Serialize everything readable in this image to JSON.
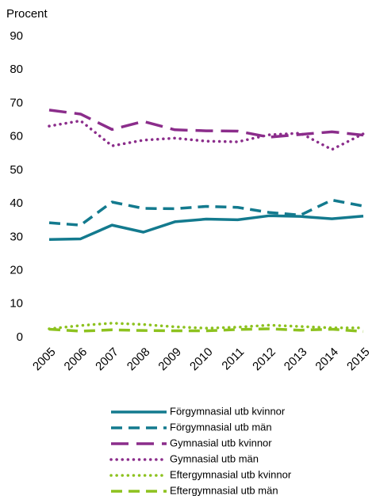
{
  "chart_data": {
    "type": "line",
    "y_label": "Procent",
    "categories": [
      "2005",
      "2006",
      "2007",
      "2008",
      "2009",
      "2010",
      "2011",
      "2012",
      "2013",
      "2014",
      "2015"
    ],
    "ylim": [
      0,
      90
    ],
    "yticks": [
      0,
      10,
      20,
      30,
      40,
      50,
      60,
      70,
      80,
      90
    ],
    "grid": false,
    "legend": "bottom",
    "series": [
      {
        "name": "Förgymnasial utb kvinnor",
        "color": "#137a8e",
        "style": "solid",
        "values": [
          29.3,
          29.5,
          33.6,
          31.5,
          34.6,
          35.4,
          35.2,
          36.4,
          36.2,
          35.5,
          36.3
        ]
      },
      {
        "name": "Förgymnasial utb män",
        "color": "#137a8e",
        "style": "dashed",
        "values": [
          34.3,
          33.6,
          40.5,
          38.6,
          38.5,
          39.2,
          38.9,
          37.4,
          36.6,
          41.1,
          39.3
        ]
      },
      {
        "name": "Gymnasial utb kvinnor",
        "color": "#8b2d8b",
        "style": "longdash",
        "values": [
          68.0,
          66.8,
          62.2,
          64.6,
          62.1,
          61.8,
          61.7,
          59.9,
          60.7,
          61.5,
          60.5
        ]
      },
      {
        "name": "Gymnasial utb män",
        "color": "#8b2d8b",
        "style": "dotted",
        "values": [
          63.2,
          64.8,
          57.3,
          59.0,
          59.6,
          58.7,
          58.5,
          60.6,
          61.1,
          56.2,
          60.9
        ]
      },
      {
        "name": "Eftergymnasial utb kvinnor",
        "color": "#8dc21f",
        "style": "dotted",
        "values": [
          2.6,
          3.6,
          4.3,
          3.9,
          3.2,
          2.8,
          3.1,
          3.7,
          3.3,
          2.9,
          2.9
        ]
      },
      {
        "name": "Eftergymnasial utb män",
        "color": "#8dc21f",
        "style": "dashed",
        "values": [
          2.5,
          1.9,
          2.3,
          2.1,
          2.0,
          2.0,
          2.4,
          2.6,
          2.2,
          2.5,
          1.8
        ]
      }
    ]
  }
}
